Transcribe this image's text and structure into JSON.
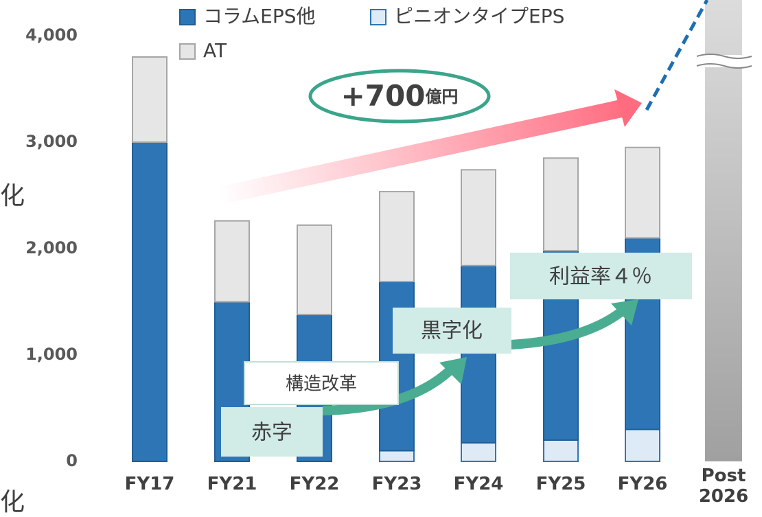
{
  "chart_data": {
    "type": "stacked_bar",
    "categories": [
      "FY17",
      "FY21",
      "FY22",
      "FY23",
      "FY24",
      "FY25",
      "FY26",
      "Post 2026"
    ],
    "series": [
      {
        "name": "コラムEPS他",
        "color": "#2e75b6",
        "values": [
          3000,
          1500,
          1380,
          1590,
          1665,
          1780,
          1800,
          null
        ]
      },
      {
        "name": "ピニオンタイプEPS",
        "color": "#deebf7",
        "values": [
          0,
          0,
          0,
          100,
          175,
          200,
          300,
          null
        ]
      },
      {
        "name": "AT",
        "color": "#e6e6e6",
        "values": [
          800,
          760,
          840,
          845,
          900,
          870,
          850,
          null
        ]
      }
    ],
    "ylim": [
      0,
      4000
    ],
    "yticks": [
      0,
      {
        "value": 1000,
        "label": "1,000"
      },
      {
        "value": 2000,
        "label": "2,000"
      },
      {
        "value": 3000,
        "label": "3,000"
      },
      {
        "value": 4000,
        "label": "4,000"
      }
    ],
    "annotations": {
      "growth": {
        "amount": "+700",
        "unit": "億円"
      },
      "margin": "利益率４％",
      "profit": "黒字化",
      "reform": "構造改革",
      "deficit": "赤字",
      "cropped_top": "化",
      "cropped_bottom": "化"
    }
  }
}
